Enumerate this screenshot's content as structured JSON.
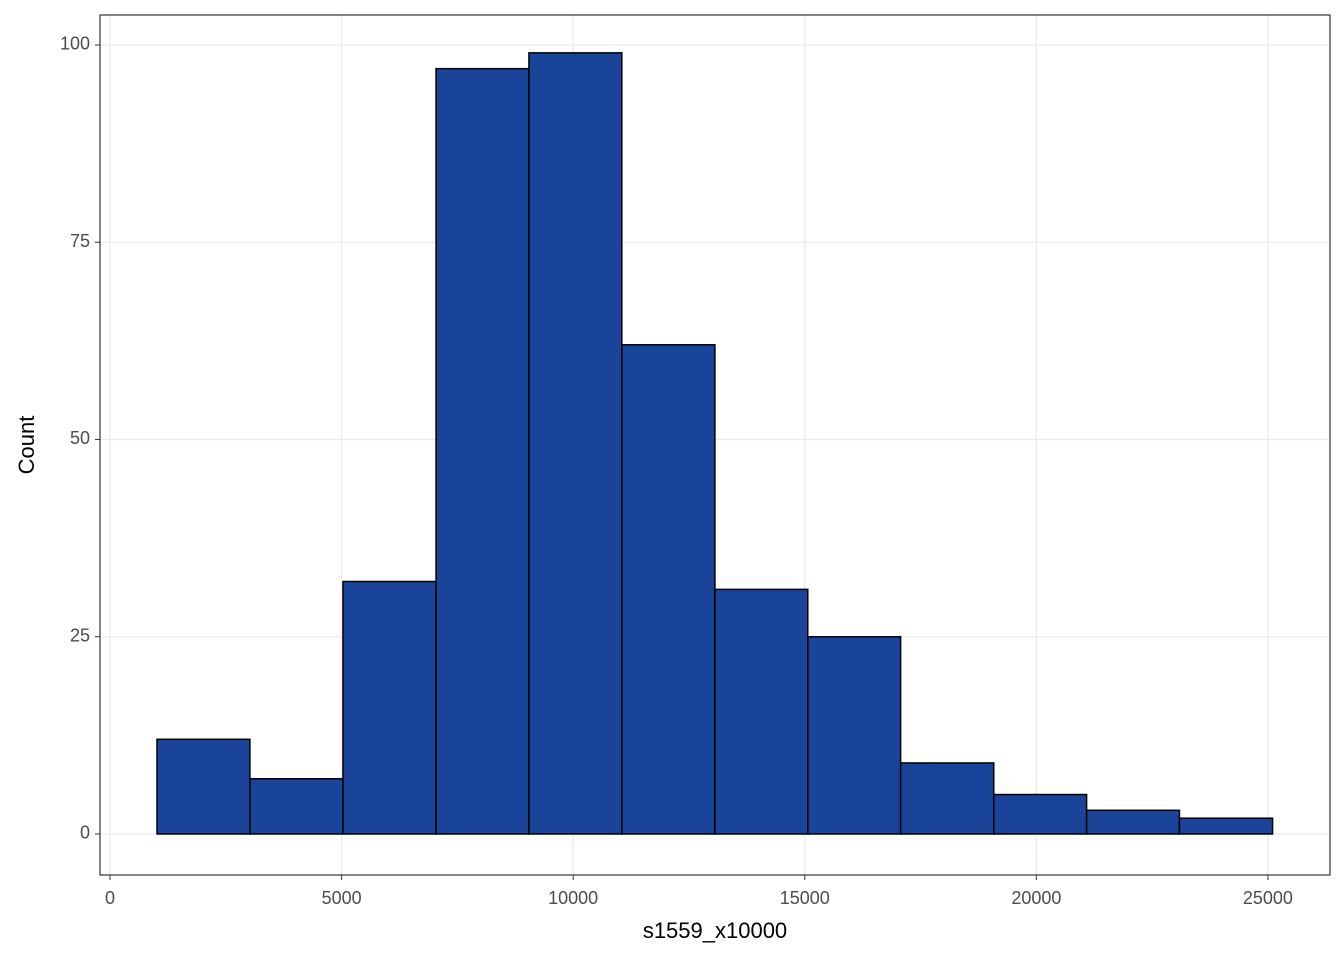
{
  "chart_data": {
    "type": "histogram",
    "x_label": "s1559_x10000",
    "y_label": "Count",
    "bins": [
      1015,
      3020,
      5030,
      7040,
      9045,
      11050,
      13060,
      15065,
      17070,
      19080,
      21085,
      23090,
      25100
    ],
    "values": [
      12,
      7,
      32,
      97,
      99,
      62,
      31,
      25,
      9,
      5,
      3,
      2
    ],
    "color": "#1a4499",
    "xlim": [
      -216,
      26340
    ],
    "xticks": [
      0,
      5000,
      10000,
      15000,
      20000,
      25000
    ],
    "ylim": [
      -5.2,
      103.8
    ],
    "yticks": [
      0,
      25,
      50,
      75,
      100
    ],
    "grid": true
  }
}
